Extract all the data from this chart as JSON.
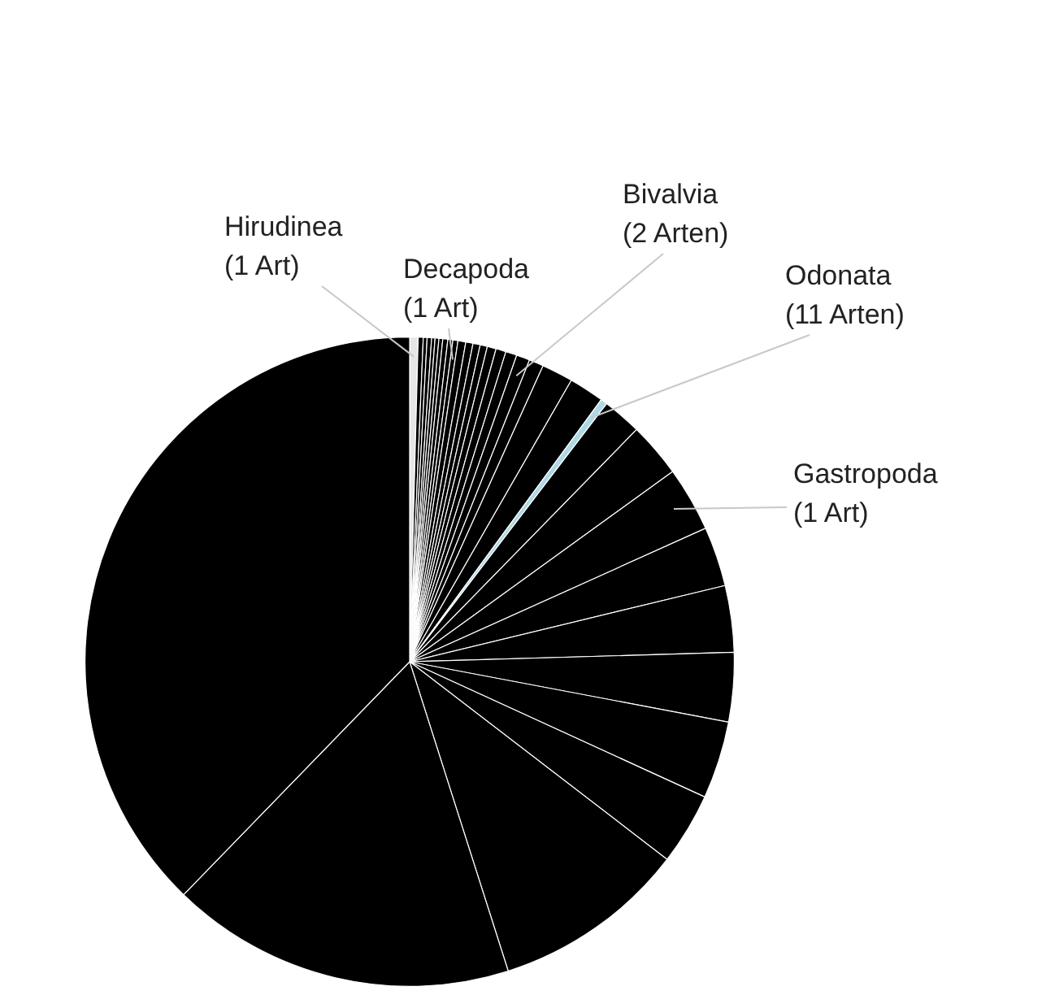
{
  "chart_data": {
    "type": "pie",
    "categories": [
      "Hirudinea (1 Art)",
      null,
      null,
      null,
      null,
      null,
      null,
      null,
      null,
      "Decapoda (1 Art)",
      null,
      null,
      null,
      null,
      null,
      null,
      null,
      "Bivalvia (2 Arten)",
      null,
      null,
      null,
      "Odonata (11 Arten)",
      null,
      null,
      "Gastropoda (1 Art)",
      null,
      null,
      null,
      null,
      null,
      null,
      null,
      null
    ],
    "values": [
      0.42,
      0.25,
      0.19,
      0.22,
      0.17,
      0.19,
      0.19,
      0.25,
      0.25,
      0.25,
      0.39,
      0.36,
      0.36,
      0.36,
      0.44,
      0.5,
      0.56,
      0.67,
      0.72,
      1.56,
      1.75,
      0.33,
      1.94,
      2.72,
      3.22,
      2.97,
      3.31,
      3.44,
      3.86,
      3.58,
      9.67,
      17.17,
      37.74
    ],
    "colors": [
      "#e6e6e6",
      "#000000",
      "#000000",
      "#000000",
      "#000000",
      "#000000",
      "#000000",
      "#000000",
      "#000000",
      "#000000",
      "#000000",
      "#000000",
      "#000000",
      "#000000",
      "#000000",
      "#000000",
      "#000000",
      "#000000",
      "#000000",
      "#000000",
      "#000000",
      "#add8e6",
      "#000000",
      "#000000",
      "#000000",
      "#000000",
      "#000000",
      "#000000",
      "#000000",
      "#000000",
      "#000000",
      "#000000",
      "#000000"
    ]
  }
}
